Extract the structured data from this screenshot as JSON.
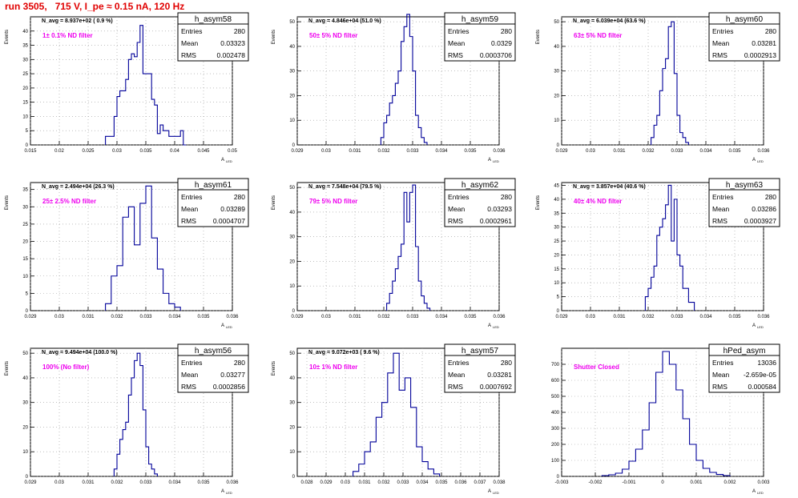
{
  "title": "run 3505,   715 V, I_pe ≈ 0.15 nA, 120 Hz",
  "stat_labels": {
    "entries": "Entries",
    "mean": "Mean",
    "rms": "RMS"
  },
  "chart_data": [
    {
      "type": "histogram",
      "name": "h_asym58",
      "navg": "N_avg = 8.937e+02 ( 0.9 %)",
      "filter": "1± 0.1% ND filter",
      "entries": "280",
      "mean": "0.03323",
      "rms": "0.002478",
      "xlabel": "A_LED",
      "ylabel": "Events",
      "xlim": [
        0.015,
        0.05
      ],
      "ylim": [
        0,
        45
      ],
      "xticks": [
        0.015,
        0.02,
        0.025,
        0.03,
        0.035,
        0.04,
        0.045,
        0.05
      ],
      "yticks": [
        0,
        5,
        10,
        15,
        20,
        25,
        30,
        35,
        40
      ],
      "bins": [
        0.028,
        0.0285,
        0.029,
        0.0295,
        0.03,
        0.0305,
        0.031,
        0.0315,
        0.032,
        0.0325,
        0.033,
        0.0335,
        0.034,
        0.0345,
        0.035,
        0.0355,
        0.036,
        0.0365,
        0.037,
        0.0375,
        0.038,
        0.0385,
        0.039,
        0.0395,
        0.04,
        0.0405,
        0.041,
        0.0415
      ],
      "counts": [
        3,
        3,
        3,
        10,
        17,
        19,
        19,
        23,
        30,
        32,
        31,
        36,
        42,
        25,
        25,
        25,
        16,
        14,
        4,
        7,
        5,
        5,
        3,
        3,
        3,
        3,
        5,
        0
      ]
    },
    {
      "type": "histogram",
      "name": "h_asym59",
      "navg": "N_avg = 4.846e+04 (51.0 %)",
      "filter": "50± 5% ND filter",
      "entries": "280",
      "mean": "0.0329",
      "rms": "0.0003706",
      "xlabel": "A_LED",
      "ylabel": "Events",
      "xlim": [
        0.029,
        0.036
      ],
      "ylim": [
        0,
        52
      ],
      "xticks": [
        0.029,
        0.03,
        0.031,
        0.032,
        0.033,
        0.034,
        0.035,
        0.036
      ],
      "yticks": [
        0,
        10,
        20,
        30,
        40,
        50
      ],
      "bins": [
        0.0319,
        0.032,
        0.0321,
        0.0322,
        0.0323,
        0.0324,
        0.0325,
        0.0326,
        0.0327,
        0.0328,
        0.0329,
        0.033,
        0.0331,
        0.0332,
        0.0333,
        0.0334
      ],
      "counts": [
        3,
        9,
        12,
        17,
        20,
        25,
        30,
        42,
        48,
        53,
        44,
        30,
        12,
        7,
        3,
        1
      ]
    },
    {
      "type": "histogram",
      "name": "h_asym60",
      "navg": "N_avg = 6.039e+04 (63.6 %)",
      "filter": "63± 5% ND filter",
      "entries": "280",
      "mean": "0.03281",
      "rms": "0.0002913",
      "xlabel": "A_LED",
      "ylabel": "Events",
      "xlim": [
        0.029,
        0.036
      ],
      "ylim": [
        0,
        52
      ],
      "xticks": [
        0.029,
        0.03,
        0.031,
        0.032,
        0.033,
        0.034,
        0.035,
        0.036
      ],
      "yticks": [
        0,
        10,
        20,
        30,
        40,
        50
      ],
      "bins": [
        0.0321,
        0.0322,
        0.0323,
        0.0324,
        0.0325,
        0.0326,
        0.0327,
        0.0328,
        0.0329,
        0.033,
        0.0331,
        0.0332,
        0.0333
      ],
      "counts": [
        3,
        8,
        12,
        22,
        31,
        35,
        48,
        50,
        29,
        12,
        5,
        3,
        1
      ]
    },
    {
      "type": "histogram",
      "name": "h_asym61",
      "navg": "N_avg = 2.494e+04 (26.3 %)",
      "filter": "25± 2.5% ND filter",
      "entries": "280",
      "mean": "0.03289",
      "rms": "0.0004707",
      "xlabel": "A_LED",
      "ylabel": "Events",
      "xlim": [
        0.029,
        0.036
      ],
      "ylim": [
        0,
        37
      ],
      "xticks": [
        0.029,
        0.03,
        0.031,
        0.032,
        0.033,
        0.034,
        0.035,
        0.036
      ],
      "yticks": [
        0,
        5,
        10,
        15,
        20,
        25,
        30,
        35
      ],
      "bins": [
        0.0316,
        0.0318,
        0.032,
        0.0322,
        0.0324,
        0.0326,
        0.0328,
        0.033,
        0.0332,
        0.0334,
        0.0336,
        0.0338,
        0.034
      ],
      "counts": [
        2,
        10,
        13,
        27,
        30,
        19,
        31,
        36,
        21,
        12,
        5,
        2,
        1
      ]
    },
    {
      "type": "histogram",
      "name": "h_asym62",
      "navg": "N_avg = 7.548e+04 (79.5 %)",
      "filter": "79± 5% ND filter",
      "entries": "280",
      "mean": "0.03293",
      "rms": "0.0002961",
      "xlabel": "A_LED",
      "ylabel": "Events",
      "xlim": [
        0.029,
        0.036
      ],
      "ylim": [
        0,
        52
      ],
      "xticks": [
        0.029,
        0.03,
        0.031,
        0.032,
        0.033,
        0.034,
        0.035,
        0.036
      ],
      "yticks": [
        0,
        10,
        20,
        30,
        40,
        50
      ],
      "bins": [
        0.0321,
        0.0322,
        0.0323,
        0.0324,
        0.0325,
        0.0326,
        0.0327,
        0.0328,
        0.0329,
        0.033,
        0.0331,
        0.0332,
        0.0333,
        0.0334,
        0.0335
      ],
      "counts": [
        3,
        7,
        12,
        17,
        22,
        27,
        48,
        36,
        48,
        51,
        26,
        12,
        6,
        3,
        1
      ]
    },
    {
      "type": "histogram",
      "name": "h_asym63",
      "navg": "N_avg = 3.857e+04 (40.6 %)",
      "filter": "40± 4% ND filter",
      "entries": "280",
      "mean": "0.03286",
      "rms": "0.0003927",
      "xlabel": "A_LED",
      "ylabel": "Events",
      "xlim": [
        0.029,
        0.036
      ],
      "ylim": [
        0,
        46
      ],
      "xticks": [
        0.029,
        0.03,
        0.031,
        0.032,
        0.033,
        0.034,
        0.035,
        0.036
      ],
      "yticks": [
        0,
        5,
        10,
        15,
        20,
        25,
        30,
        35,
        40,
        45
      ],
      "bins": [
        0.0319,
        0.032,
        0.0321,
        0.0322,
        0.0323,
        0.0324,
        0.0325,
        0.0326,
        0.0327,
        0.0328,
        0.0329,
        0.033,
        0.0331,
        0.0332,
        0.0333,
        0.0334,
        0.0335
      ],
      "counts": [
        5,
        8,
        12,
        16,
        27,
        30,
        33,
        38,
        45,
        25,
        40,
        20,
        16,
        8,
        8,
        3,
        3
      ]
    },
    {
      "type": "histogram",
      "name": "h_asym56",
      "navg": "N_avg = 9.494e+04 (100.0 %)",
      "filter": "100% (No filter)",
      "entries": "280",
      "mean": "0.03277",
      "rms": "0.0002856",
      "xlabel": "A_LED",
      "ylabel": "Events",
      "xlim": [
        0.029,
        0.036
      ],
      "ylim": [
        0,
        52
      ],
      "xticks": [
        0.029,
        0.03,
        0.031,
        0.032,
        0.033,
        0.034,
        0.035,
        0.036
      ],
      "yticks": [
        0,
        10,
        20,
        30,
        40,
        50
      ],
      "bins": [
        0.0319,
        0.032,
        0.0321,
        0.0322,
        0.0323,
        0.0324,
        0.0325,
        0.0326,
        0.0327,
        0.0328,
        0.0329,
        0.033,
        0.0331,
        0.0332,
        0.0333
      ],
      "counts": [
        3,
        9,
        15,
        19,
        22,
        33,
        40,
        47,
        50,
        45,
        27,
        12,
        5,
        3,
        1
      ]
    },
    {
      "type": "histogram",
      "name": "h_asym57",
      "navg": "N_avg = 9.072e+03 ( 9.6 %)",
      "filter": "10± 1% ND filter",
      "entries": "280",
      "mean": "0.03281",
      "rms": "0.0007692",
      "xlabel": "A_LED",
      "ylabel": "Events",
      "xlim": [
        0.0275,
        0.038
      ],
      "ylim": [
        0,
        52
      ],
      "xticks": [
        0.028,
        0.029,
        0.03,
        0.031,
        0.032,
        0.033,
        0.034,
        0.035,
        0.036,
        0.037,
        0.038
      ],
      "yticks": [
        0,
        10,
        20,
        30,
        40,
        50
      ],
      "bins": [
        0.0304,
        0.0307,
        0.031,
        0.0313,
        0.0316,
        0.0319,
        0.0322,
        0.0325,
        0.0328,
        0.0331,
        0.0334,
        0.0337,
        0.034,
        0.0343,
        0.0346
      ],
      "counts": [
        2,
        5,
        10,
        14,
        24,
        30,
        42,
        50,
        35,
        40,
        28,
        12,
        6,
        3,
        1
      ]
    },
    {
      "type": "histogram",
      "name": "hPed_asym",
      "navg": "",
      "filter": "Shutter Closed",
      "entries": "13036",
      "mean": "-2.659e-05",
      "rms": "0.000584",
      "xlabel": "A_LED",
      "ylabel": "",
      "xlim": [
        -0.003,
        0.003
      ],
      "ylim": [
        0,
        800
      ],
      "xticks": [
        -0.003,
        -0.002,
        -0.001,
        0,
        0.001,
        0.002,
        0.003
      ],
      "yticks": [
        0,
        100,
        200,
        300,
        400,
        500,
        600,
        700
      ],
      "bins": [
        -0.0018,
        -0.0016,
        -0.0014,
        -0.0012,
        -0.001,
        -0.0008,
        -0.0006,
        -0.0004,
        -0.0002,
        0,
        0.0002,
        0.0004,
        0.0006,
        0.0008,
        0.001,
        0.0012,
        0.0014,
        0.0016,
        0.0018
      ],
      "counts": [
        5,
        10,
        20,
        45,
        95,
        170,
        290,
        460,
        650,
        780,
        700,
        540,
        360,
        200,
        100,
        50,
        25,
        12,
        5
      ]
    }
  ]
}
